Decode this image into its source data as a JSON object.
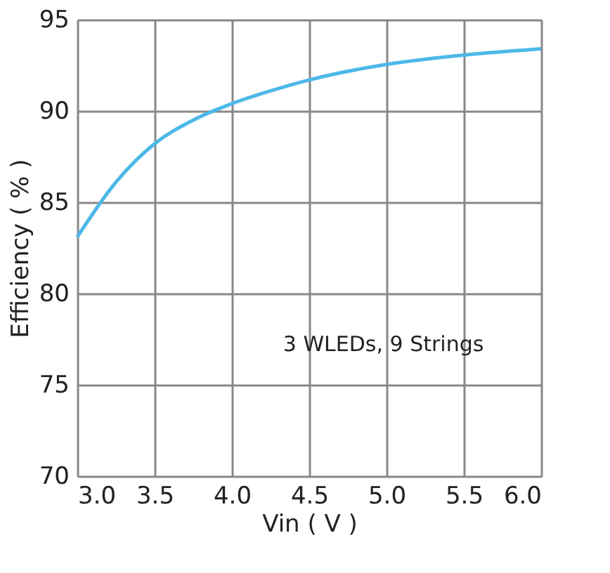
{
  "chart_data": {
    "type": "line",
    "xlabel": "Vin ( V )",
    "ylabel": "Efficiency ( % )",
    "x": [
      3.0,
      3.25,
      3.5,
      3.75,
      4.0,
      4.25,
      4.5,
      5.0,
      5.5,
      6.0
    ],
    "series": [
      {
        "color": "#4db8e8",
        "values": [
          83.1,
          86.1,
          88.2,
          89.5,
          90.4,
          91.1,
          91.7,
          92.55,
          93.06,
          93.4
        ]
      }
    ],
    "xlim": [
      3.0,
      6.0
    ],
    "ylim": [
      70,
      95
    ],
    "xticks": [
      {
        "value": 3,
        "label": "3.0"
      },
      {
        "value": 3.5,
        "label": "3.5"
      },
      {
        "value": 4,
        "label": "4.0"
      },
      {
        "value": 4.5,
        "label": "4.5"
      },
      {
        "value": 5,
        "label": "5.0"
      },
      {
        "value": 5.5,
        "label": "5.5"
      },
      {
        "value": 6,
        "label": "6.0"
      }
    ],
    "yticks": [
      70,
      75,
      80,
      85,
      90,
      95
    ],
    "grid": true,
    "marker": "none",
    "line_style": "solid",
    "annotations": [
      "3 WLEDs, 9 Strings"
    ]
  }
}
